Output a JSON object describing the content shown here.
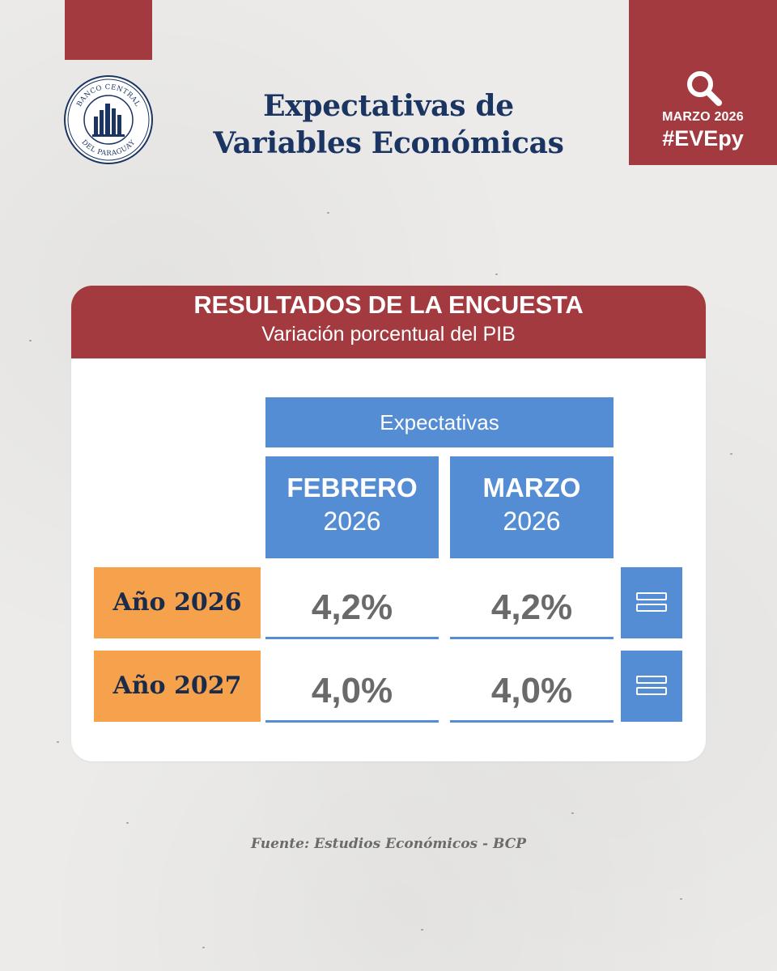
{
  "logo": {
    "text_top": "BANCO CENTRAL",
    "text_bottom": "DEL PARAGUAY"
  },
  "header": {
    "title_line1": "Expectativas de",
    "title_line2": "Variables Económicas"
  },
  "badge": {
    "icon": "search-icon",
    "date": "MARZO 2026",
    "hashtag": "#EVEpy"
  },
  "card": {
    "title": "RESULTADOS DE LA ENCUESTA",
    "subtitle": "Variación porcentual del PIB"
  },
  "table": {
    "group_header": "Expectativas",
    "columns": [
      {
        "month": "FEBRERO",
        "year": "2026"
      },
      {
        "month": "MARZO",
        "year": "2026"
      }
    ],
    "rows": [
      {
        "label": "Año 2026",
        "values": [
          "4,2%",
          "4,2%"
        ],
        "indicator": "equals-icon"
      },
      {
        "label": "Año 2027",
        "values": [
          "4,0%",
          "4,0%"
        ],
        "indicator": "equals-icon"
      }
    ]
  },
  "footer": {
    "source": "Fuente: Estudios Económicos - BCP"
  },
  "colors": {
    "brand_red": "#a33a3f",
    "navy": "#1b3562",
    "blue": "#548dd4",
    "orange": "#f6a24d",
    "background": "#ecebe9"
  }
}
